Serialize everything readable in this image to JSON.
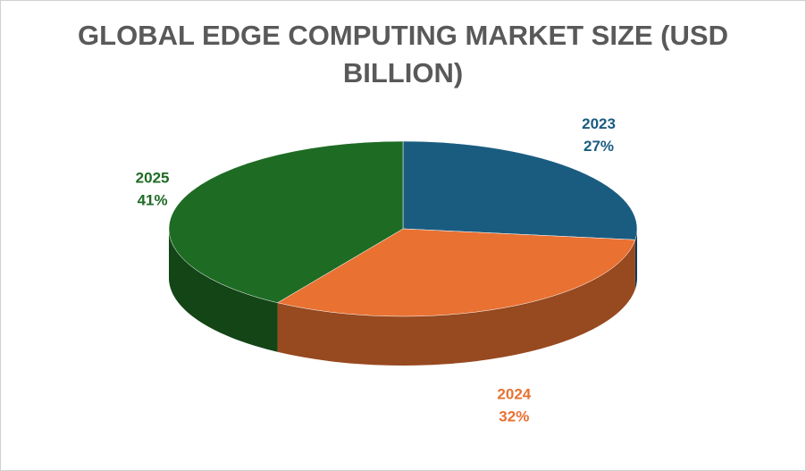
{
  "chart_data": {
    "type": "pie3d",
    "title": "GLOBAL EDGE COMPUTING MARKET SIZE (USD BILLION)",
    "categories": [
      "2023",
      "2024",
      "2025"
    ],
    "values": [
      27,
      32,
      41
    ],
    "value_labels": [
      "27%",
      "32%",
      "41%"
    ],
    "colors": [
      "#1a5c80",
      "#e97132",
      "#1e6b24"
    ]
  }
}
